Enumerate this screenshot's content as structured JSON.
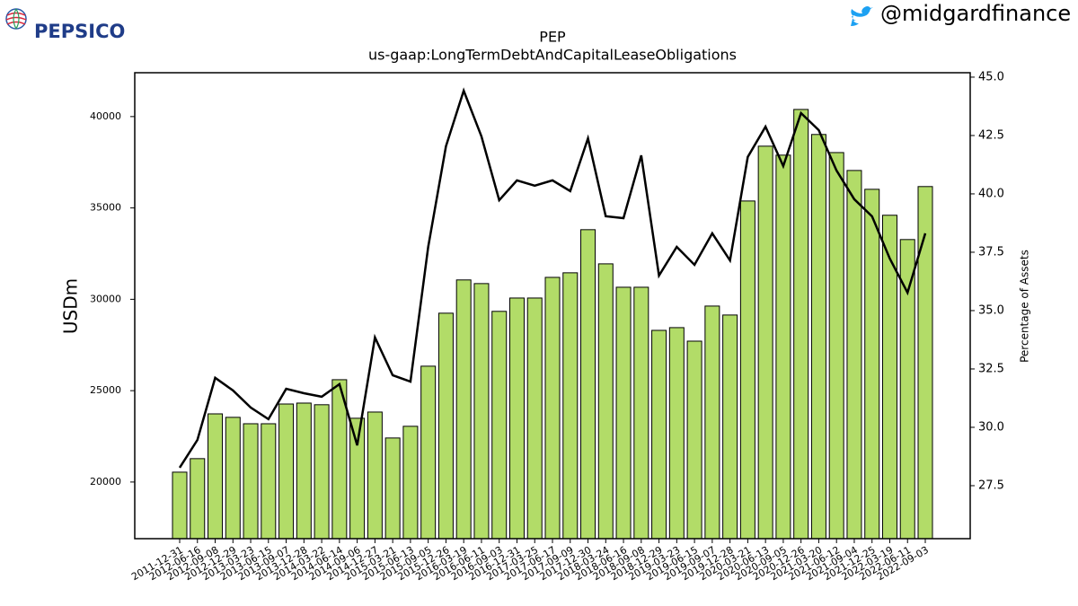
{
  "header": {
    "logo_text": "PEPSICO",
    "handle": "@midgardfinance"
  },
  "chart_data": {
    "type": "bar",
    "title": "PEP",
    "subtitle": "us-gaap:LongTermDebtAndCapitalLeaseObligations",
    "y_label": "USDm",
    "y2_label": "Percentage of Assets",
    "categories": [
      "2011-12-31",
      "2012-06-16",
      "2012-09-08",
      "2012-12-29",
      "2013-03-23",
      "2013-06-15",
      "2013-09-07",
      "2013-12-28",
      "2014-03-22",
      "2014-06-14",
      "2014-09-06",
      "2014-12-27",
      "2015-03-21",
      "2015-06-13",
      "2015-09-05",
      "2015-12-26",
      "2016-03-19",
      "2016-06-11",
      "2016-09-03",
      "2016-12-31",
      "2017-03-25",
      "2017-06-17",
      "2017-09-09",
      "2017-12-30",
      "2018-03-24",
      "2018-06-16",
      "2018-09-08",
      "2018-12-29",
      "2019-03-23",
      "2019-06-15",
      "2019-09-07",
      "2019-12-28",
      "2020-03-21",
      "2020-06-13",
      "2020-09-05",
      "2020-12-26",
      "2021-03-20",
      "2021-06-12",
      "2021-09-04",
      "2021-12-25",
      "2022-03-19",
      "2022-06-11",
      "2022-09-03"
    ],
    "series": [
      {
        "type": "bar",
        "color": "#b2dc68",
        "values": [
          20540,
          21280,
          23730,
          23540,
          23190,
          23190,
          24270,
          24320,
          24230,
          25600,
          23490,
          23830,
          22410,
          23050,
          26340,
          29240,
          31060,
          30860,
          29340,
          30070,
          30070,
          31200,
          31450,
          33810,
          31940,
          30660,
          30660,
          28300,
          28450,
          27710,
          29630,
          29140,
          35380,
          38380,
          37890,
          40390,
          39020,
          38030,
          37050,
          36020,
          34600,
          33270,
          36170
        ]
      },
      {
        "type": "line",
        "axis": "y2",
        "color": "#000000",
        "values": [
          28.27,
          29.46,
          32.12,
          31.58,
          30.85,
          30.35,
          31.65,
          31.46,
          31.31,
          31.85,
          29.23,
          33.85,
          32.23,
          31.96,
          37.73,
          42.04,
          44.42,
          42.46,
          39.73,
          40.58,
          40.35,
          40.58,
          40.12,
          42.38,
          39.04,
          38.96,
          41.65,
          36.5,
          37.73,
          36.96,
          38.31,
          37.15,
          41.58,
          42.88,
          41.19,
          43.46,
          42.73,
          41.0,
          39.77,
          39.04,
          37.23,
          35.77,
          38.31
        ]
      }
    ],
    "ylim": [
      16900,
      42400
    ],
    "yticks": [
      20000,
      25000,
      30000,
      35000,
      40000
    ],
    "y2lim": [
      25.23,
      45.19
    ],
    "y2ticks": [
      27.5,
      {
        "value": 30,
        "label": "30.0"
      },
      32.5,
      {
        "value": 35,
        "label": "35.0"
      },
      37.5,
      {
        "value": 40,
        "label": "40.0"
      },
      42.5,
      {
        "value": 45,
        "label": "45.0"
      }
    ],
    "grid": false
  }
}
